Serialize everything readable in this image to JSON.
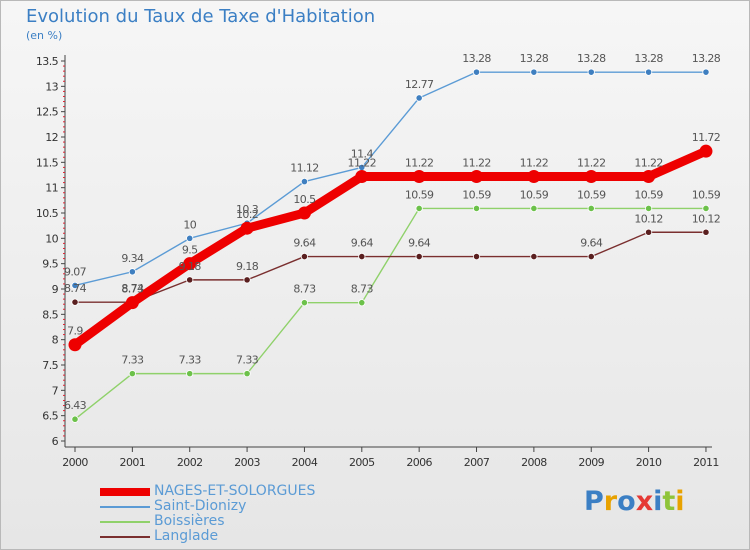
{
  "title": "Evolution du Taux de Taxe d'Habitation",
  "subtitle": "(en %)",
  "logo_text": "Proxiti",
  "chart_data": {
    "type": "line",
    "title": "Evolution du Taux de Taxe d'Habitation",
    "ylabel": "(en %)",
    "xlabel": "",
    "ylim": [
      6,
      13.5
    ],
    "yticks": [
      "6",
      "6.5",
      "7",
      "7.5",
      "8",
      "8.5",
      "9",
      "9.5",
      "10",
      "10.5",
      "11",
      "11.5",
      "12",
      "12.5",
      "13",
      "13.5"
    ],
    "categories": [
      "2000",
      "2001",
      "2002",
      "2003",
      "2004",
      "2005",
      "2006",
      "2007",
      "2008",
      "2009",
      "2010",
      "2011"
    ],
    "grid": false,
    "legend_position": "bottom-left",
    "series": [
      {
        "name": "NAGES-ET-SOLORGUES",
        "color": "#ee0000",
        "values": [
          7.9,
          8.73,
          9.5,
          10.2,
          10.5,
          11.22,
          11.22,
          11.22,
          11.22,
          11.22,
          11.22,
          11.72
        ],
        "labels": [
          "7.9",
          "8.73",
          "9.5",
          "10.2",
          "10.5",
          "11.22",
          "11.22",
          "11.22",
          "11.22",
          "11.22",
          "11.22",
          "11.72"
        ]
      },
      {
        "name": "Saint-Dionizy",
        "color": "#5b9bd5",
        "values": [
          9.07,
          9.34,
          10,
          10.3,
          11.12,
          11.4,
          12.77,
          13.28,
          13.28,
          13.28,
          13.28,
          13.28
        ],
        "labels": [
          "9.07",
          "9.34",
          "10",
          "10.3",
          "11.12",
          "11.4",
          "12.77",
          "13.28",
          "13.28",
          "13.28",
          "13.28",
          "13.28"
        ]
      },
      {
        "name": "Boissières",
        "color": "#8fd16a",
        "values": [
          6.43,
          7.33,
          7.33,
          7.33,
          8.73,
          8.73,
          10.59,
          10.59,
          10.59,
          10.59,
          10.59,
          10.59
        ],
        "labels": [
          "6.43",
          "7.33",
          "7.33",
          "7.33",
          "8.73",
          "8.73",
          "10.59",
          "10.59",
          "10.59",
          "10.59",
          "10.59",
          "10.59"
        ]
      },
      {
        "name": "Langlade",
        "color": "#7a2f2f",
        "values": [
          8.74,
          8.74,
          9.18,
          9.18,
          9.64,
          9.64,
          9.64,
          9.64,
          9.64,
          9.64,
          10.12,
          10.12
        ],
        "labels": [
          "8.74",
          "8.74",
          "9.18",
          "9.18",
          "9.64",
          "9.64",
          "9.64",
          "",
          "",
          "9.64",
          "10.12",
          "10.12"
        ]
      }
    ]
  },
  "colors": {
    "title": "#3b7fc4",
    "axis": "#444444",
    "value_label": "#555555",
    "marker_saint": "#3f7fc0",
    "marker_boiss": "#6cc14a",
    "marker_lang": "#5a1f1f"
  },
  "legend": [
    {
      "label": "NAGES-ET-SOLORGUES"
    },
    {
      "label": "Saint-Dionizy"
    },
    {
      "label": "Boissières"
    },
    {
      "label": "Langlade"
    }
  ]
}
